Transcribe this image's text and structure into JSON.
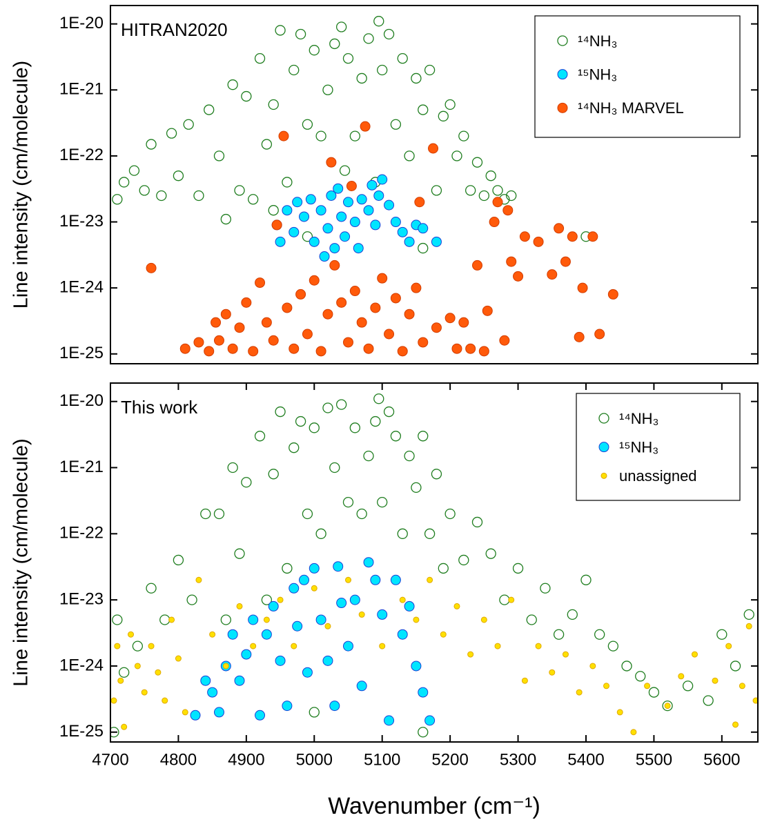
{
  "chart_data": [
    {
      "type": "scatter",
      "annotation": "HITRAN2020",
      "ylabel": "Line intensity (cm/molecule)",
      "yscale": "log",
      "legend": "upper right",
      "xlim": [
        4700,
        5653
      ],
      "ylim": [
        7.1e-26,
        1.9e-20
      ],
      "yticks": [
        {
          "value": 1e-20,
          "label": "1E-20"
        },
        {
          "value": 1e-21,
          "label": "1E-21"
        },
        {
          "value": 1e-22,
          "label": "1E-22"
        },
        {
          "value": 1e-23,
          "label": "1E-23"
        },
        {
          "value": 1e-24,
          "label": "1E-24"
        },
        {
          "value": 1e-25,
          "label": "1E-25"
        }
      ],
      "series": [
        {
          "name": "¹⁴NH₃",
          "marker": "open",
          "color": "#1e7d1e",
          "x": [
            4710,
            4720,
            4735,
            4750,
            4760,
            4775,
            4790,
            4800,
            4815,
            4830,
            4845,
            4860,
            4870,
            4880,
            4890,
            4900,
            4910,
            4920,
            4930,
            4940,
            4950,
            4960,
            4970,
            4980,
            4990,
            5000,
            5010,
            5020,
            5030,
            5040,
            5045,
            5050,
            5060,
            5070,
            5080,
            5090,
            5095,
            5100,
            5110,
            5120,
            5130,
            5140,
            5150,
            5160,
            5170,
            5180,
            5190,
            5200,
            5210,
            5220,
            5230,
            5240,
            5250,
            5260,
            5270,
            5280,
            5290,
            4990,
            5160,
            5400,
            4940
          ],
          "y": [
            2.2e-23,
            4e-23,
            6e-23,
            3e-23,
            1.5e-22,
            2.5e-23,
            2.2e-22,
            5e-23,
            3e-22,
            2.5e-23,
            5e-22,
            1e-22,
            1.1e-23,
            1.2e-21,
            3e-23,
            8e-22,
            2.2e-23,
            3e-21,
            1.5e-22,
            6e-22,
            8e-21,
            4e-23,
            2e-21,
            7e-21,
            3e-22,
            4e-21,
            2e-22,
            1e-21,
            5e-21,
            9e-21,
            6e-23,
            3e-21,
            2e-22,
            1.5e-21,
            6e-21,
            4e-23,
            1.1e-20,
            2e-21,
            7e-21,
            3e-22,
            3e-21,
            1e-22,
            1.5e-21,
            5e-22,
            2e-21,
            3e-23,
            4e-22,
            6e-22,
            1e-22,
            2e-22,
            3e-23,
            8e-23,
            2.5e-23,
            5e-23,
            3e-23,
            2.2e-23,
            2.5e-23,
            6e-24,
            4e-24,
            6e-24,
            1.5e-23
          ]
        },
        {
          "name": "¹⁵NH₃",
          "marker": "filled",
          "color": "#00e5ff",
          "edgecolor": "#1a3fd6",
          "x": [
            4945,
            4950,
            4960,
            4970,
            4975,
            4985,
            4995,
            5000,
            5010,
            5015,
            5020,
            5025,
            5030,
            5035,
            5040,
            5045,
            5050,
            5060,
            5065,
            5070,
            5080,
            5085,
            5090,
            5095,
            5100,
            5110,
            5120,
            5130,
            5140,
            5150,
            5160,
            5180
          ],
          "y": [
            9e-24,
            5e-24,
            1.5e-23,
            7e-24,
            2e-23,
            1.2e-23,
            2.2e-23,
            5e-24,
            1.5e-23,
            3e-24,
            8e-24,
            2.5e-23,
            4e-24,
            3.2e-23,
            1.2e-23,
            6e-24,
            2e-23,
            1e-23,
            4e-24,
            2.2e-23,
            1.5e-23,
            3.6e-23,
            9e-24,
            2.5e-23,
            4.4e-23,
            1.8e-23,
            1e-23,
            7e-24,
            5e-24,
            9e-24,
            8e-24,
            5e-24
          ]
        },
        {
          "name": "¹⁴NH₃ MARVEL",
          "marker": "filled",
          "color": "#ff5a0a",
          "edgecolor": "#d23c00",
          "x": [
            4810,
            4830,
            4845,
            4855,
            4860,
            4870,
            4880,
            4890,
            4900,
            4910,
            4920,
            4930,
            4940,
            4945,
            4955,
            4960,
            4970,
            4980,
            4990,
            5000,
            5010,
            5020,
            5025,
            5030,
            5040,
            5050,
            5055,
            5060,
            5070,
            5075,
            5080,
            5090,
            5100,
            5110,
            5120,
            5130,
            5140,
            5150,
            5155,
            5160,
            5175,
            5180,
            5200,
            5210,
            5220,
            5230,
            5240,
            5250,
            5255,
            5265,
            5270,
            5280,
            5285,
            5290,
            5300,
            5310,
            5330,
            5350,
            5360,
            5370,
            5380,
            5390,
            5395,
            5410,
            5420,
            5440,
            4760
          ],
          "y": [
            1.2e-25,
            1.5e-25,
            1.1e-25,
            3e-25,
            1.6e-25,
            4e-25,
            1.2e-25,
            2.5e-25,
            6e-25,
            1.1e-25,
            1.2e-24,
            3e-25,
            1.6e-25,
            9e-24,
            2e-22,
            5e-25,
            1.2e-25,
            8e-25,
            2e-25,
            1.3e-24,
            1.1e-25,
            4e-25,
            8e-23,
            2.2e-24,
            6e-25,
            1.5e-25,
            3.5e-23,
            9e-25,
            3e-25,
            2.8e-22,
            1.2e-25,
            5e-25,
            1.4e-24,
            2e-25,
            7e-25,
            1.1e-25,
            4e-25,
            1e-24,
            2e-23,
            1.5e-25,
            1.3e-22,
            2.5e-25,
            3.5e-25,
            1.2e-25,
            3e-25,
            1.2e-25,
            2.2e-24,
            1.1e-25,
            4.5e-25,
            1e-23,
            2e-23,
            1.6e-25,
            1.5e-23,
            2.5e-24,
            1.5e-24,
            6e-24,
            5e-24,
            1.6e-24,
            8e-24,
            2.5e-24,
            6e-24,
            1.8e-25,
            1e-24,
            6e-24,
            2e-25,
            8e-25,
            2e-24
          ]
        }
      ]
    },
    {
      "type": "scatter",
      "annotation": "This work",
      "ylabel": "Line intensity (cm/molecule)",
      "xlabel": "Wavenumber (cm⁻¹)",
      "yscale": "log",
      "legend": "upper right",
      "xlim": [
        4700,
        5653
      ],
      "ylim": [
        7.1e-26,
        1.9e-20
      ],
      "xticks": [
        4700,
        4800,
        4900,
        5000,
        5100,
        5200,
        5300,
        5400,
        5500,
        5600
      ],
      "yticks": [
        {
          "value": 1e-20,
          "label": "1E-20"
        },
        {
          "value": 1e-21,
          "label": "1E-21"
        },
        {
          "value": 1e-22,
          "label": "1E-22"
        },
        {
          "value": 1e-23,
          "label": "1E-23"
        },
        {
          "value": 1e-24,
          "label": "1E-24"
        },
        {
          "value": 1e-25,
          "label": "1E-25"
        }
      ],
      "series": [
        {
          "name": "¹⁴NH₃",
          "marker": "open",
          "color": "#1e7d1e",
          "x": [
            4705,
            4710,
            4720,
            4740,
            4760,
            4780,
            4800,
            4820,
            4840,
            4860,
            4870,
            4880,
            4890,
            4900,
            4920,
            4930,
            4940,
            4950,
            4960,
            4970,
            4980,
            4990,
            5000,
            5010,
            5020,
            5030,
            5040,
            5050,
            5060,
            5070,
            5080,
            5090,
            5095,
            5100,
            5110,
            5120,
            5130,
            5140,
            5150,
            5160,
            5170,
            5180,
            5190,
            5200,
            5220,
            5240,
            5260,
            5280,
            5300,
            5320,
            5340,
            5360,
            5380,
            5400,
            5420,
            5440,
            5460,
            5480,
            5500,
            5520,
            5550,
            5580,
            5600,
            5620,
            5640,
            5160,
            5000
          ],
          "y": [
            1e-25,
            5e-24,
            8e-25,
            2e-24,
            1.5e-23,
            5e-24,
            4e-23,
            1e-23,
            2e-22,
            2e-22,
            5e-24,
            1e-21,
            5e-23,
            6e-22,
            3e-21,
            1e-23,
            8e-22,
            7e-21,
            3e-23,
            2e-21,
            5e-21,
            2e-22,
            4e-21,
            1e-22,
            8e-21,
            1e-21,
            9e-21,
            3e-22,
            4e-21,
            2e-22,
            1.5e-21,
            5e-21,
            1.1e-20,
            3e-22,
            7e-21,
            3e-21,
            1e-22,
            1.5e-21,
            5e-22,
            3e-21,
            1e-22,
            8e-22,
            3e-23,
            2e-22,
            4e-23,
            1.5e-22,
            5e-23,
            1e-23,
            3e-23,
            5e-24,
            1.5e-23,
            3e-24,
            6e-24,
            2e-23,
            3e-24,
            2e-24,
            1e-24,
            7e-25,
            4e-25,
            2.5e-25,
            5e-25,
            3e-25,
            3e-24,
            1e-24,
            6e-24,
            1e-25,
            2e-25
          ]
        },
        {
          "name": "¹⁵NH₃",
          "marker": "filled",
          "color": "#00e5ff",
          "edgecolor": "#1a3fd6",
          "x": [
            4825,
            4840,
            4850,
            4860,
            4870,
            4880,
            4890,
            4900,
            4910,
            4920,
            4930,
            4940,
            4950,
            4960,
            4970,
            4975,
            4985,
            4990,
            5000,
            5010,
            5020,
            5030,
            5035,
            5040,
            5050,
            5060,
            5070,
            5080,
            5090,
            5100,
            5110,
            5120,
            5130,
            5140,
            5150,
            5160,
            5170
          ],
          "y": [
            1.8e-25,
            6e-25,
            4e-25,
            2e-25,
            1e-24,
            3e-24,
            6e-25,
            1.5e-24,
            5e-24,
            1.8e-25,
            3e-24,
            8e-24,
            1.2e-24,
            2.5e-25,
            1.5e-23,
            4e-24,
            2e-23,
            8e-25,
            3e-23,
            5e-24,
            1.2e-24,
            2.5e-25,
            3.2e-23,
            9e-24,
            2e-24,
            1e-23,
            5e-25,
            3.7e-23,
            2e-23,
            6e-24,
            1.5e-25,
            2e-23,
            3e-24,
            8e-24,
            1e-24,
            4e-25,
            1.5e-25
          ]
        },
        {
          "name": "unassigned",
          "marker": "small",
          "color": "#ffe000",
          "edgecolor": "#e0a800",
          "x": [
            4705,
            4710,
            4715,
            4720,
            4730,
            4740,
            4750,
            4760,
            4770,
            4780,
            4790,
            4800,
            4810,
            4830,
            4850,
            4870,
            4890,
            4910,
            4930,
            4950,
            4970,
            5000,
            5020,
            5050,
            5070,
            5100,
            5130,
            5150,
            5170,
            5190,
            5210,
            5230,
            5250,
            5270,
            5290,
            5310,
            5330,
            5350,
            5370,
            5390,
            5410,
            5430,
            5450,
            5470,
            5490,
            5520,
            5540,
            5560,
            5590,
            5610,
            5620,
            5630,
            5640,
            5650
          ],
          "y": [
            3e-25,
            2e-24,
            6e-25,
            1.2e-25,
            3e-24,
            1e-24,
            4e-25,
            2e-24,
            8e-25,
            3e-25,
            5e-24,
            1.3e-24,
            2e-25,
            2e-23,
            3e-24,
            1e-24,
            8e-24,
            2e-24,
            5e-24,
            1e-23,
            2e-24,
            1.5e-23,
            4e-24,
            2e-23,
            6e-24,
            2e-24,
            1e-23,
            5e-24,
            2e-23,
            3e-24,
            8e-24,
            1.5e-24,
            5e-24,
            2e-24,
            1e-23,
            6e-25,
            2e-24,
            8e-25,
            1.5e-24,
            4e-25,
            1e-24,
            5e-25,
            2e-25,
            1e-25,
            5e-25,
            2.5e-25,
            7e-25,
            1.5e-24,
            6e-25,
            2e-24,
            1.3e-25,
            5e-25,
            4e-24,
            3e-25
          ]
        }
      ]
    }
  ]
}
